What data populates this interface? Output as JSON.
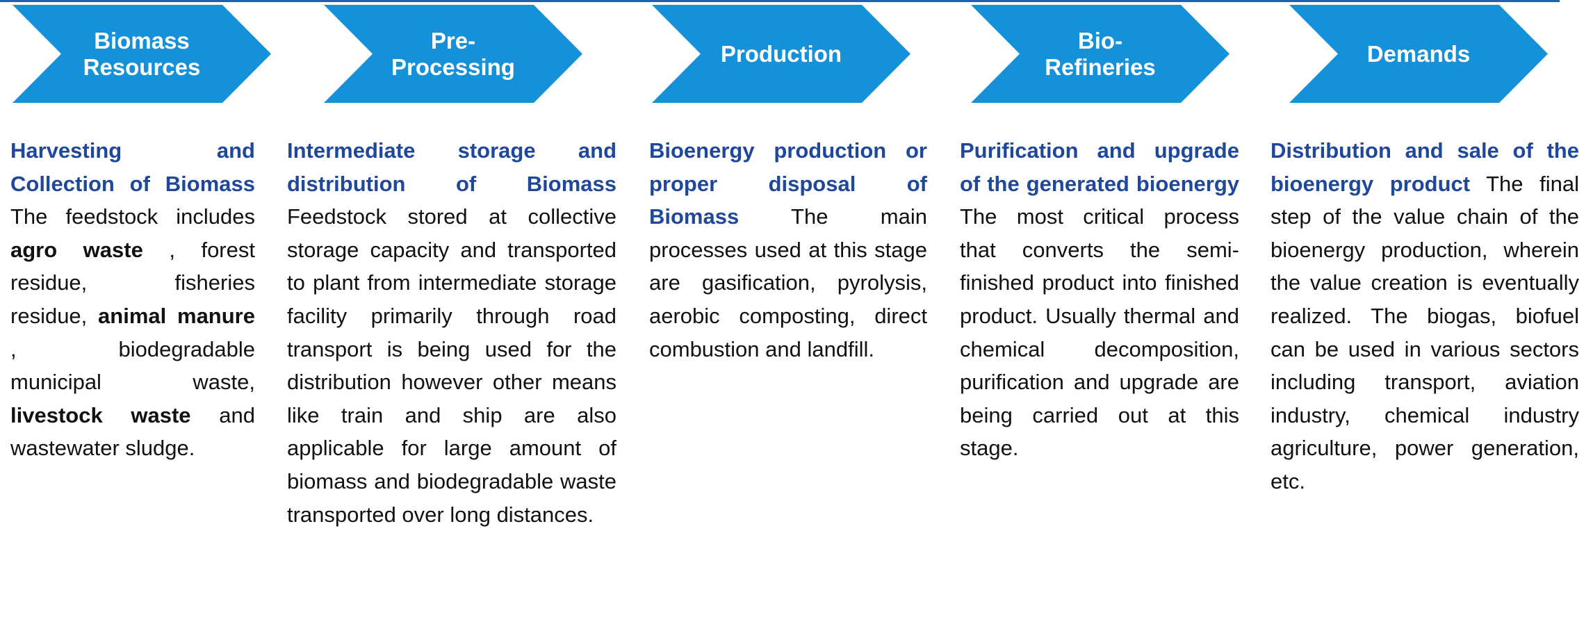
{
  "stages": [
    {
      "label": "Biomass Resources",
      "heading": "Harvesting and Collection of Biomass",
      "runs": [
        {
          "text": "The feedstock includes",
          "style": "plain"
        },
        {
          "text": "agro waste",
          "style": "bold"
        },
        {
          "text": ", forest residue, fisheries residue,",
          "style": "plain"
        },
        {
          "text": "animal manure",
          "style": "bold"
        },
        {
          "text": ", biodegradable municipal waste,",
          "style": "plain"
        },
        {
          "text": "livestock waste",
          "style": "bold"
        },
        {
          "text": "and wastewater sludge.",
          "style": "plain"
        }
      ]
    },
    {
      "label": "Pre-Processing",
      "heading": "Intermediate storage and distribution of Biomass",
      "runs": [
        {
          "text": "Feedstock stored at collective storage capacity and transported to plant from intermediate storage facility primarily through road transport is being used for the distribution however other means like train and ship are also applicable for large amount of biomass and biodegradable waste transported over long distances.",
          "style": "plain"
        }
      ]
    },
    {
      "label": "Production",
      "heading": "Bioenergy production or proper disposal of Biomass",
      "runs": [
        {
          "text": "The main processes used at this stage are gasification, pyrolysis, aerobic composting, direct combustion and landfill.",
          "style": "plain"
        }
      ]
    },
    {
      "label": "Bio-Refineries",
      "heading": "Purification and upgrade of the generated bioenergy",
      "runs": [
        {
          "text": "The most critical process that converts the semi-finished product into finished product. Usually thermal and chemical decomposition, purification and upgrade are being carried out at this stage.",
          "style": "plain"
        }
      ]
    },
    {
      "label": "Demands",
      "heading": "Distribution and sale of the bioenergy product",
      "runs": [
        {
          "text": "The final step of the value chain of the bioenergy production, wherein the value creation is eventually realized. The biogas, biofuel can be used in various sectors including transport, aviation industry, chemical industry agriculture, power generation, etc.",
          "style": "plain"
        }
      ]
    }
  ]
}
